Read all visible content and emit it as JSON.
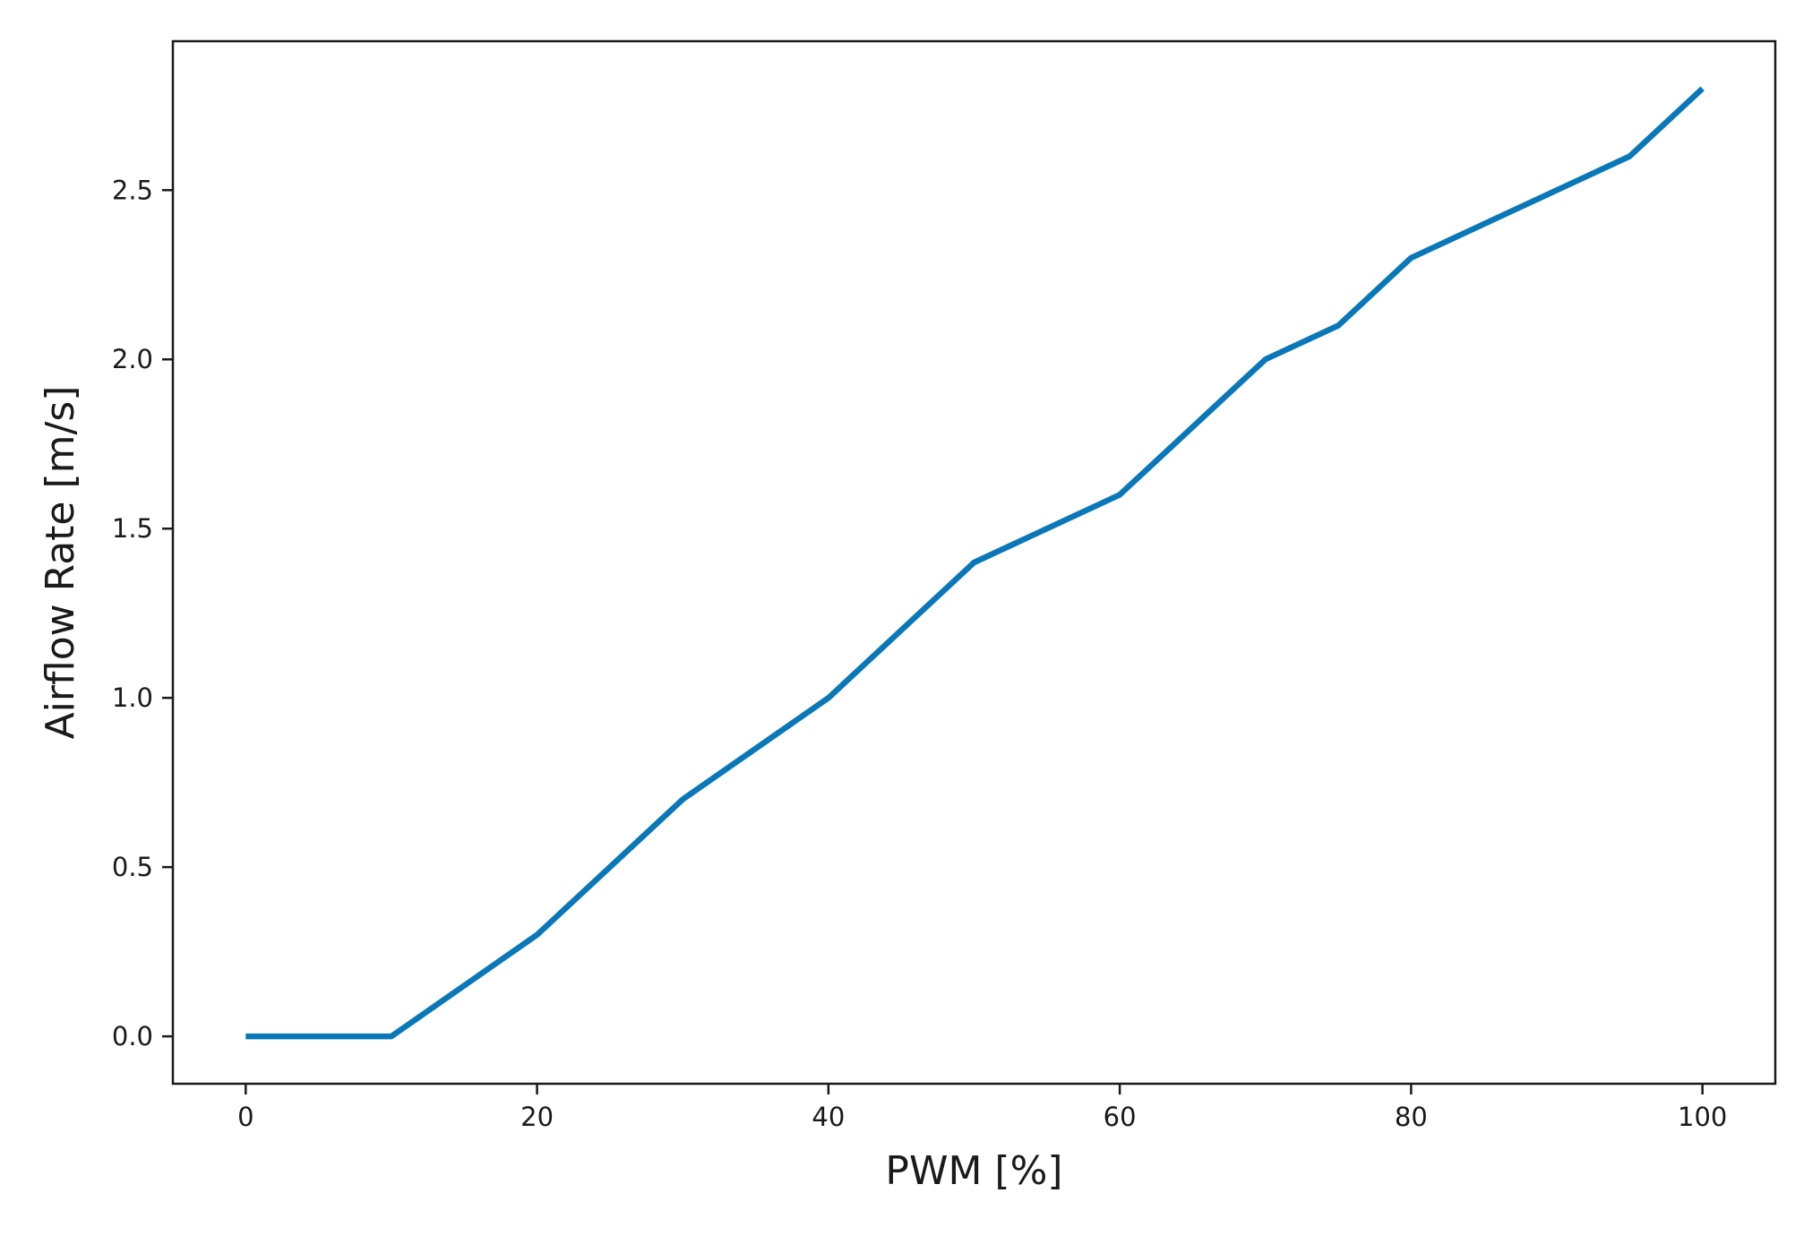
{
  "chart_data": {
    "type": "line",
    "title": "",
    "xlabel": "PWM [%]",
    "ylabel": "Airflow Rate [m/s]",
    "xlim": [
      -5,
      105
    ],
    "ylim": [
      -0.14,
      2.94
    ],
    "x_ticks": [
      0,
      20,
      40,
      60,
      80,
      100
    ],
    "x_tick_labels": [
      "0",
      "20",
      "40",
      "60",
      "80",
      "100"
    ],
    "y_ticks": [
      0.0,
      0.5,
      1.0,
      1.5,
      2.0,
      2.5
    ],
    "y_tick_labels": [
      "0.0",
      "0.5",
      "1.0",
      "1.5",
      "2.0",
      "2.5"
    ],
    "grid": false,
    "legend": false,
    "colors": {
      "line": "#0a78b8",
      "axes": "#1a1a1a"
    },
    "series": [
      {
        "x": [
          0,
          10,
          20,
          30,
          40,
          50,
          60,
          70,
          75,
          80,
          95,
          100
        ],
        "y": [
          0.0,
          0.0,
          0.3,
          0.7,
          1.0,
          1.4,
          1.6,
          2.0,
          2.1,
          2.3,
          2.6,
          2.8
        ]
      }
    ]
  }
}
